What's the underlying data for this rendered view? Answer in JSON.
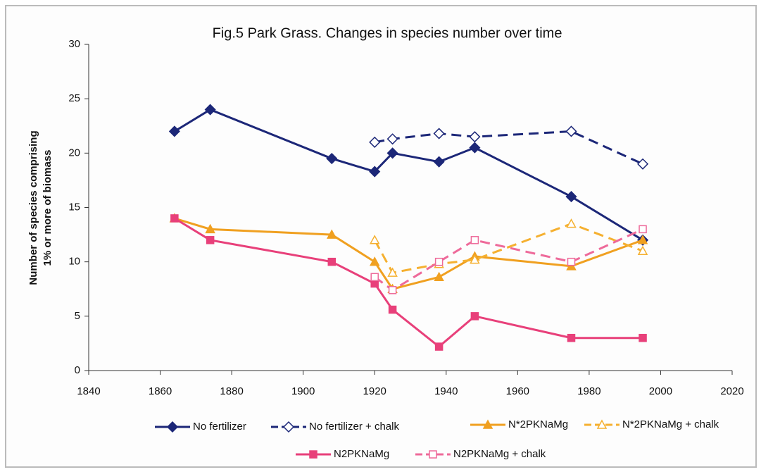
{
  "chart_data": {
    "type": "line",
    "title": "Fig.5  Park Grass.  Changes in species number over time",
    "ylabel": [
      "Number of species comprising",
      "1% or more of biomass"
    ],
    "x": [
      1864,
      1874,
      1908,
      1920,
      1925,
      1938,
      1948,
      1975,
      1995
    ],
    "xlim": [
      1840,
      2020
    ],
    "xticks": [
      1840,
      1860,
      1880,
      1900,
      1920,
      1940,
      1960,
      1980,
      2000,
      2020
    ],
    "ylim": [
      0,
      30
    ],
    "yticks": [
      0,
      5,
      10,
      15,
      20,
      25,
      30
    ],
    "series": [
      {
        "name": "No fertilizer",
        "color": "#1c2778",
        "dashed": false,
        "marker": "diamond",
        "filled": true,
        "values": [
          22,
          24,
          19.5,
          18.3,
          20,
          19.2,
          20.5,
          16,
          12
        ]
      },
      {
        "name": "No fertilizer + chalk",
        "color": "#1c2778",
        "dashed": true,
        "marker": "diamond",
        "filled": false,
        "values": [
          null,
          null,
          null,
          21,
          21.3,
          21.8,
          21.5,
          22,
          19
        ]
      },
      {
        "name": "N*2PKNaMg",
        "color": "#f0a020",
        "dashed": false,
        "marker": "triangle",
        "filled": true,
        "values": [
          14,
          13,
          12.5,
          10,
          7.5,
          8.6,
          10.5,
          9.6,
          12
        ]
      },
      {
        "name": "N*2PKNaMg + chalk",
        "color": "#f5b030",
        "dashed": true,
        "marker": "triangle",
        "filled": false,
        "values": [
          null,
          null,
          null,
          12,
          9,
          9.8,
          10.2,
          13.5,
          11
        ]
      },
      {
        "name": "N2PKNaMg",
        "color": "#e8407a",
        "dashed": false,
        "marker": "square",
        "filled": true,
        "values": [
          14,
          12,
          10,
          8,
          5.6,
          2.2,
          5,
          3,
          3
        ]
      },
      {
        "name": "N2PKNaMg + chalk",
        "color": "#ee6a9a",
        "dashed": true,
        "marker": "square",
        "filled": false,
        "values": [
          null,
          null,
          null,
          8.6,
          7.4,
          10,
          12,
          10,
          13
        ]
      }
    ]
  }
}
